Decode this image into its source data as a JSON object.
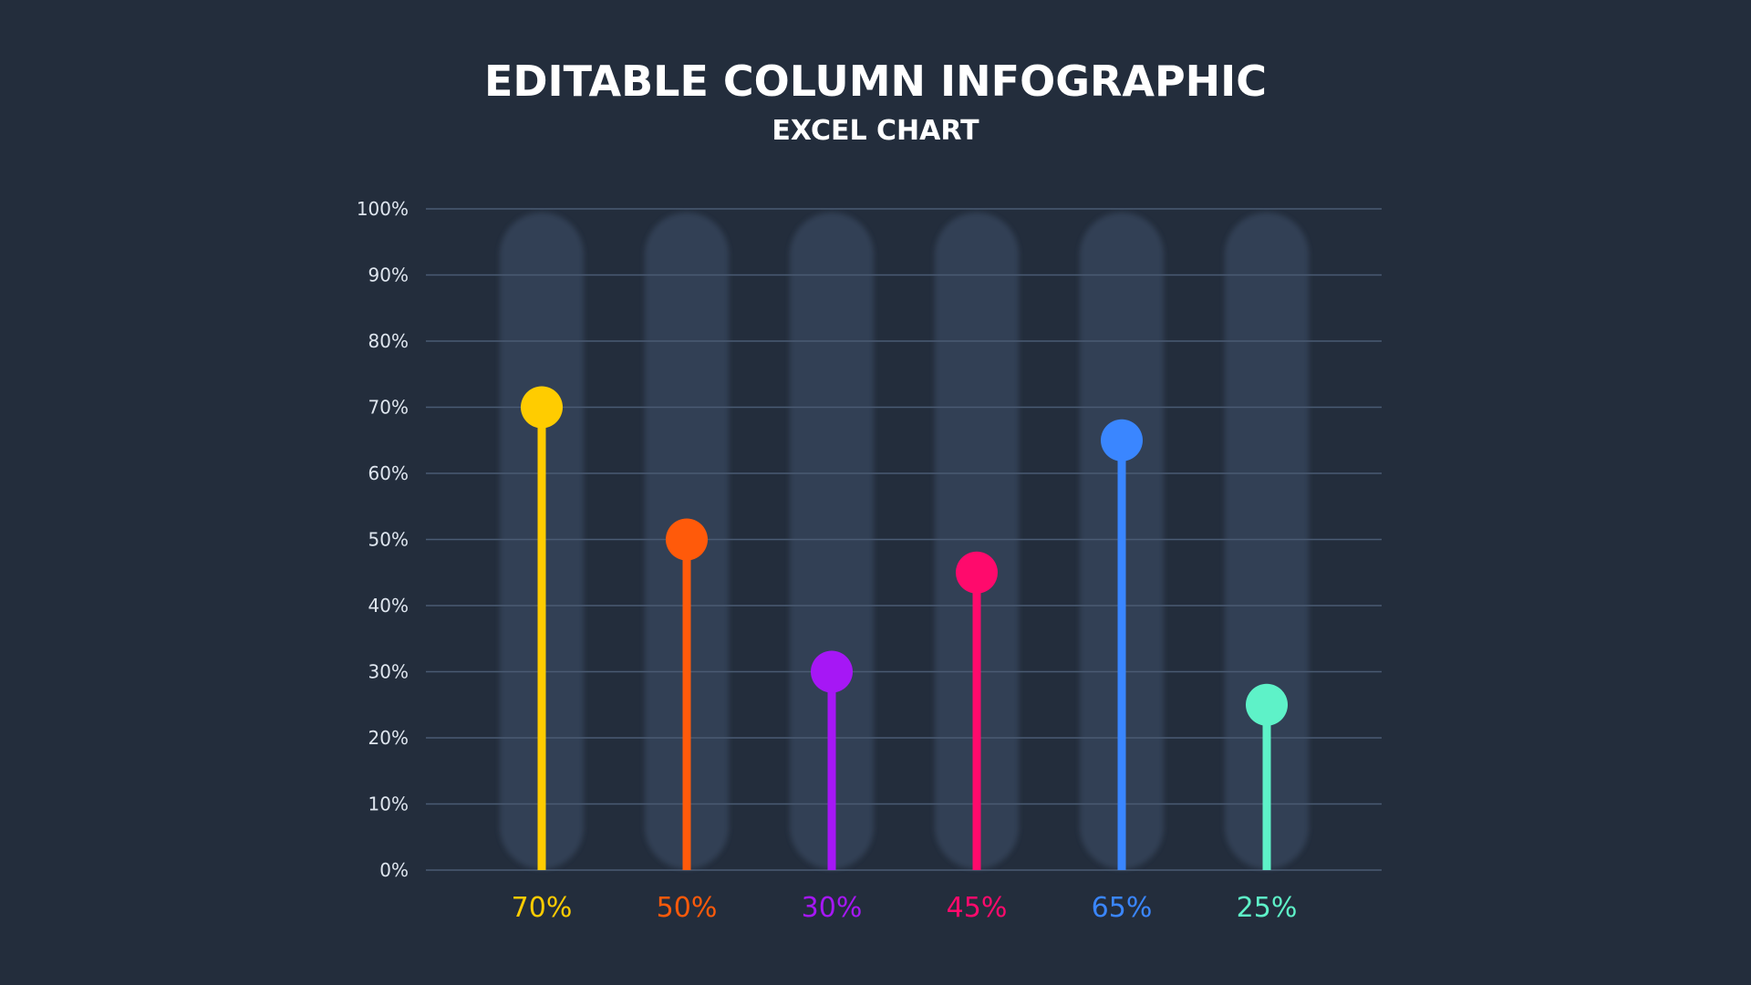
{
  "chart_data": {
    "type": "lollipop",
    "title": "EDITABLE COLUMN INFOGRAPHIC",
    "subtitle": "EXCEL CHART",
    "categories": [
      "",
      "",
      "",
      "",
      "",
      ""
    ],
    "values": [
      70,
      50,
      30,
      45,
      65,
      25
    ],
    "value_labels": [
      "70%",
      "50%",
      "30%",
      "45%",
      "65%",
      "25%"
    ],
    "colors": [
      "#ffcc00",
      "#ff5a0a",
      "#a617f5",
      "#ff0a6c",
      "#3a86ff",
      "#5ef2c8"
    ],
    "yticks": [
      0,
      10,
      20,
      30,
      40,
      50,
      60,
      70,
      80,
      90,
      100
    ],
    "ytick_labels": [
      "0%",
      "10%",
      "20%",
      "30%",
      "40%",
      "50%",
      "60%",
      "70%",
      "80%",
      "90%",
      "100%"
    ],
    "ylim": [
      0,
      100
    ],
    "grid": true,
    "legend": "none"
  },
  "colors": {
    "background": "#232d3c",
    "track": "#313f55",
    "grid": "#4a5b73",
    "tick_text": "#dfe6ef",
    "title_text": "#ffffff"
  }
}
